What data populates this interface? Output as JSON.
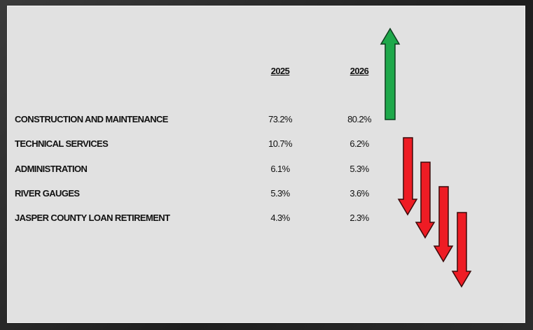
{
  "table": {
    "columns": [
      "2025",
      "2026"
    ],
    "rows": [
      [
        "CONSTRUCTION AND MAINTENANCE",
        "73.2%",
        "80.2%"
      ],
      [
        "TECHNICAL SERVICES",
        "10.7%",
        "6.2%"
      ],
      [
        "ADMINISTRATION",
        "6.1%",
        "5.3%"
      ],
      [
        "RIVER GAUGES",
        "5.3%",
        "3.6%"
      ],
      [
        "JASPER COUNTY LOAN RETIREMENT",
        "4.3%",
        "2.3%"
      ]
    ]
  }
}
